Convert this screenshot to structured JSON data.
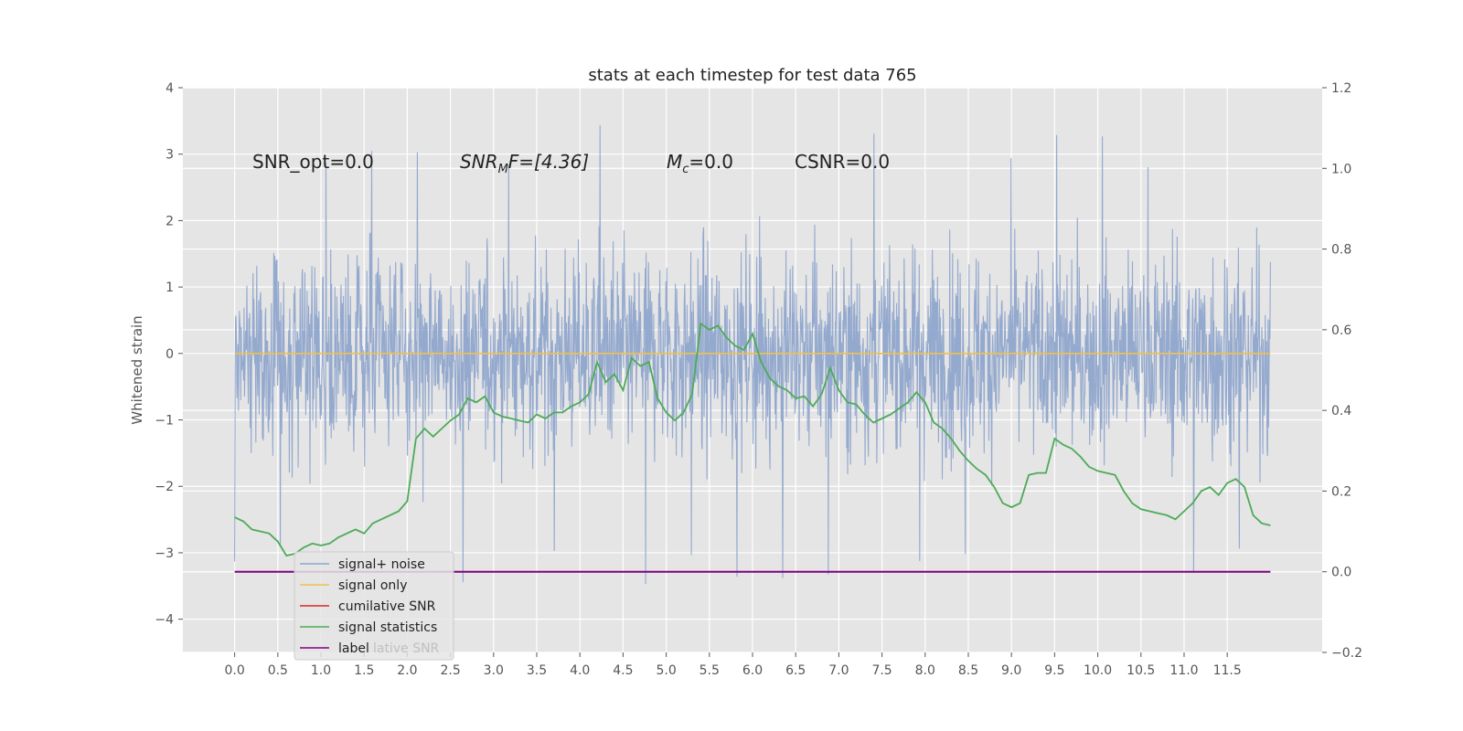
{
  "chart_data": {
    "type": "line",
    "title": "stats at each timestep for test data 765",
    "xlabel": "",
    "ylabel": "Whitened strain",
    "xlim": [
      -0.6,
      12.6
    ],
    "ylim": [
      -4.5,
      4.0
    ],
    "y2lim": [
      -0.2,
      1.2
    ],
    "grid": true,
    "legend_position": "lower-left",
    "x_ticks": [
      "0.0",
      "0.5",
      "1.0",
      "1.5",
      "2.0",
      "2.5",
      "3.0",
      "3.5",
      "4.0",
      "4.5",
      "5.0",
      "5.5",
      "6.0",
      "6.5",
      "7.0",
      "7.5",
      "8.0",
      "8.5",
      "9.0",
      "9.5",
      "10.0",
      "10.5",
      "11.0",
      "11.5"
    ],
    "y_ticks": [
      "4",
      "3",
      "2",
      "1",
      "0",
      "−1",
      "−2",
      "−3",
      "−4"
    ],
    "y2_ticks": [
      "1.2",
      "1.0",
      "0.8",
      "0.6",
      "0.4",
      "0.2",
      "0.0",
      "−0.2"
    ],
    "annotations": {
      "snr_opt": "SNR_opt=0.0",
      "snr_mf_main": "SNR",
      "snr_mf_sub": "M",
      "snr_mf_rest": "F=[4.36]",
      "mc_main": "M",
      "mc_sub": "c",
      "mc_rest": "=0.0",
      "csnr": "CSNR=0.0"
    },
    "series": [
      {
        "name": "signal+ noise",
        "color": "#8fa5cc",
        "axis": "left",
        "x_range": [
          0.0,
          12.0
        ],
        "y_range_typical": [
          -2.3,
          2.3
        ],
        "y_extremes": [
          -4.1,
          3.6
        ]
      },
      {
        "name": "signal only",
        "color": "#f0c050",
        "axis": "left",
        "x": [
          0.0,
          12.0
        ],
        "y": [
          0.0,
          0.0
        ]
      },
      {
        "name": "cumilative SNR",
        "color": "#d62728",
        "axis": "right",
        "x": [],
        "y": []
      },
      {
        "name": "signal statistics",
        "color": "#4daa57",
        "axis": "right",
        "x": [
          0.0,
          0.1,
          0.2,
          0.3,
          0.4,
          0.5,
          0.6,
          0.7,
          0.8,
          0.9,
          1.0,
          1.1,
          1.2,
          1.3,
          1.4,
          1.5,
          1.6,
          1.7,
          1.8,
          1.9,
          2.0,
          2.1,
          2.2,
          2.3,
          2.4,
          2.5,
          2.6,
          2.7,
          2.8,
          2.9,
          3.0,
          3.1,
          3.2,
          3.3,
          3.4,
          3.5,
          3.6,
          3.7,
          3.8,
          3.9,
          4.0,
          4.1,
          4.2,
          4.3,
          4.4,
          4.5,
          4.6,
          4.7,
          4.8,
          4.9,
          5.0,
          5.1,
          5.2,
          5.3,
          5.4,
          5.5,
          5.6,
          5.7,
          5.8,
          5.9,
          6.0,
          6.1,
          6.2,
          6.3,
          6.4,
          6.5,
          6.6,
          6.7,
          6.8,
          6.9,
          7.0,
          7.1,
          7.2,
          7.3,
          7.4,
          7.5,
          7.6,
          7.7,
          7.8,
          7.9,
          8.0,
          8.1,
          8.2,
          8.3,
          8.4,
          8.5,
          8.6,
          8.7,
          8.8,
          8.9,
          9.0,
          9.1,
          9.2,
          9.3,
          9.4,
          9.5,
          9.6,
          9.7,
          9.8,
          9.9,
          10.0,
          10.1,
          10.2,
          10.3,
          10.4,
          10.5,
          10.6,
          10.7,
          10.8,
          10.9,
          11.0,
          11.1,
          11.2,
          11.3,
          11.4,
          11.5,
          11.6,
          11.7,
          11.8,
          11.9,
          12.0
        ],
        "y": [
          0.135,
          0.125,
          0.105,
          0.1,
          0.095,
          0.075,
          0.04,
          0.045,
          0.06,
          0.07,
          0.065,
          0.07,
          0.085,
          0.095,
          0.105,
          0.095,
          0.12,
          0.13,
          0.14,
          0.15,
          0.175,
          0.33,
          0.355,
          0.335,
          0.355,
          0.375,
          0.39,
          0.43,
          0.42,
          0.435,
          0.395,
          0.385,
          0.38,
          0.375,
          0.37,
          0.39,
          0.38,
          0.395,
          0.395,
          0.41,
          0.42,
          0.44,
          0.52,
          0.47,
          0.49,
          0.45,
          0.53,
          0.51,
          0.52,
          0.43,
          0.395,
          0.375,
          0.395,
          0.44,
          0.615,
          0.6,
          0.61,
          0.58,
          0.56,
          0.55,
          0.59,
          0.52,
          0.48,
          0.46,
          0.45,
          0.43,
          0.435,
          0.41,
          0.44,
          0.505,
          0.45,
          0.42,
          0.415,
          0.39,
          0.37,
          0.38,
          0.39,
          0.405,
          0.42,
          0.445,
          0.42,
          0.37,
          0.355,
          0.33,
          0.3,
          0.275,
          0.255,
          0.24,
          0.21,
          0.17,
          0.16,
          0.17,
          0.24,
          0.245,
          0.245,
          0.33,
          0.315,
          0.305,
          0.285,
          0.26,
          0.25,
          0.245,
          0.24,
          0.2,
          0.17,
          0.155,
          0.15,
          0.145,
          0.14,
          0.13,
          0.15,
          0.17,
          0.2,
          0.21,
          0.19,
          0.22,
          0.23,
          0.21,
          0.14,
          0.12,
          0.115
        ]
      },
      {
        "name": "label",
        "color": "#800080",
        "axis": "right",
        "x": [
          0.0,
          12.0
        ],
        "y": [
          0.0,
          0.0
        ]
      }
    ],
    "legend_overlap_text": "lative SNR"
  }
}
